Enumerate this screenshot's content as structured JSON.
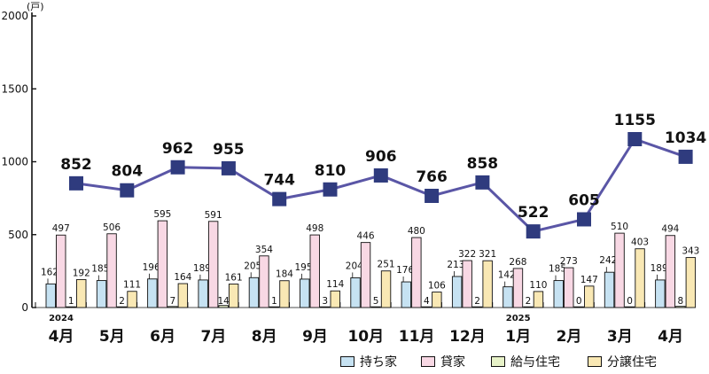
{
  "chart_data": {
    "type": "bar",
    "unit": "(戸)",
    "categories": [
      "4月",
      "5月",
      "6月",
      "7月",
      "8月",
      "9月",
      "10月",
      "11月",
      "12月",
      "1月",
      "2月",
      "3月",
      "4月"
    ],
    "year_labels": [
      {
        "label": "2024",
        "category_index": 0
      },
      {
        "label": "2025",
        "category_index": 9
      }
    ],
    "ylim": [
      0,
      2000
    ],
    "yticks": [
      0,
      500,
      1000,
      1500,
      2000
    ],
    "series": [
      {
        "name": "持ち家",
        "color": "#c6e2f2",
        "values": [
          162,
          185,
          196,
          189,
          205,
          195,
          204,
          176,
          213,
          142,
          185,
          242,
          189
        ]
      },
      {
        "name": "貸家",
        "color": "#f8d8e4",
        "values": [
          497,
          506,
          595,
          591,
          354,
          498,
          446,
          480,
          322,
          268,
          273,
          510,
          494
        ]
      },
      {
        "name": "給与住宅",
        "color": "#e7f2c8",
        "values": [
          1,
          2,
          7,
          14,
          1,
          3,
          5,
          4,
          2,
          2,
          0,
          0,
          8
        ]
      },
      {
        "name": "分譲住宅",
        "color": "#f9e8b4",
        "values": [
          192,
          111,
          164,
          161,
          184,
          114,
          251,
          106,
          321,
          110,
          147,
          403,
          343
        ]
      }
    ],
    "total": {
      "color": "#5a56a6",
      "marker_color": "#2f3b7e",
      "values": [
        852,
        804,
        962,
        955,
        744,
        810,
        906,
        766,
        858,
        522,
        605,
        1155,
        1034
      ]
    },
    "legend_position": "bottom-right",
    "grid": false
  }
}
